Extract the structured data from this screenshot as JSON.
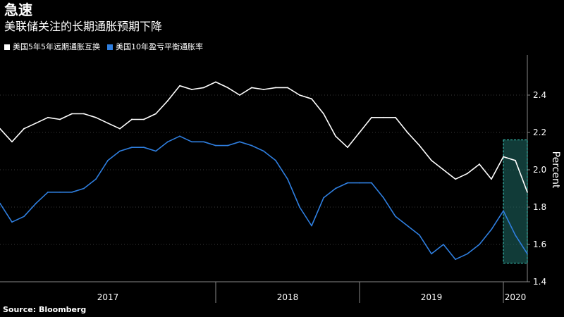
{
  "title": "急速",
  "subtitle": "美联储关注的长期通胀预期下降",
  "source": "Source: Bloomberg",
  "colors": {
    "background": "#000000",
    "series_1": "#ffffff",
    "series_2": "#2f7fe0",
    "highlight_fill": "#1f6b66",
    "highlight_border": "#3fd6c8",
    "grid": "#3a3a3a"
  },
  "chart_data": {
    "type": "line",
    "ylabel": "Percent",
    "ylim": [
      1.4,
      2.6
    ],
    "y_ticks": [
      1.4,
      1.6,
      1.8,
      2.0,
      2.2,
      2.4
    ],
    "y_tick_labels": [
      "1.4",
      "1.6",
      "1.8",
      "2.0",
      "2.2",
      "2.4"
    ],
    "y_axis_position": "right",
    "grid": true,
    "legend_position": "top-left",
    "x_start": "2016-07",
    "x_end": "2020-03",
    "x_categories": [
      "2017",
      "2018",
      "2019",
      "2020"
    ],
    "x_category_bounds": [
      [
        "2016-07",
        "2018-01"
      ],
      [
        "2018-01",
        "2019-01"
      ],
      [
        "2019-01",
        "2020-01"
      ],
      [
        "2020-01",
        "2020-03"
      ]
    ],
    "highlight": {
      "x": [
        "2020-01",
        "2020-03"
      ],
      "y": [
        1.5,
        2.16
      ]
    },
    "series": [
      {
        "name": "美国5年5年远期通胀互换",
        "x": [
          "2016-07",
          "2016-08",
          "2016-09",
          "2016-10",
          "2016-11",
          "2016-12",
          "2017-01",
          "2017-02",
          "2017-03",
          "2017-04",
          "2017-05",
          "2017-06",
          "2017-07",
          "2017-08",
          "2017-09",
          "2017-10",
          "2017-11",
          "2017-12",
          "2018-01",
          "2018-02",
          "2018-03",
          "2018-04",
          "2018-05",
          "2018-06",
          "2018-07",
          "2018-08",
          "2018-09",
          "2018-10",
          "2018-11",
          "2018-12",
          "2019-01",
          "2019-02",
          "2019-03",
          "2019-04",
          "2019-05",
          "2019-06",
          "2019-07",
          "2019-08",
          "2019-09",
          "2019-10",
          "2019-11",
          "2019-12",
          "2020-01",
          "2020-02",
          "2020-03"
        ],
        "values": [
          2.22,
          2.15,
          2.22,
          2.25,
          2.28,
          2.27,
          2.3,
          2.3,
          2.28,
          2.25,
          2.22,
          2.27,
          2.27,
          2.3,
          2.37,
          2.45,
          2.43,
          2.44,
          2.47,
          2.44,
          2.4,
          2.44,
          2.43,
          2.44,
          2.44,
          2.4,
          2.38,
          2.3,
          2.18,
          2.12,
          2.2,
          2.28,
          2.28,
          2.28,
          2.2,
          2.13,
          2.05,
          2.0,
          1.95,
          1.98,
          2.03,
          1.95,
          2.07,
          2.05,
          1.88
        ]
      },
      {
        "name": "美国10年盈亏平衡通胀率",
        "x": [
          "2016-07",
          "2016-08",
          "2016-09",
          "2016-10",
          "2016-11",
          "2016-12",
          "2017-01",
          "2017-02",
          "2017-03",
          "2017-04",
          "2017-05",
          "2017-06",
          "2017-07",
          "2017-08",
          "2017-09",
          "2017-10",
          "2017-11",
          "2017-12",
          "2018-01",
          "2018-02",
          "2018-03",
          "2018-04",
          "2018-05",
          "2018-06",
          "2018-07",
          "2018-08",
          "2018-09",
          "2018-10",
          "2018-11",
          "2018-12",
          "2019-01",
          "2019-02",
          "2019-03",
          "2019-04",
          "2019-05",
          "2019-06",
          "2019-07",
          "2019-08",
          "2019-09",
          "2019-10",
          "2019-11",
          "2019-12",
          "2020-01",
          "2020-02",
          "2020-03"
        ],
        "values": [
          1.82,
          1.72,
          1.75,
          1.82,
          1.88,
          1.88,
          1.88,
          1.9,
          1.95,
          2.05,
          2.1,
          2.12,
          2.12,
          2.1,
          2.15,
          2.18,
          2.15,
          2.15,
          2.13,
          2.13,
          2.15,
          2.13,
          2.1,
          2.05,
          1.95,
          1.8,
          1.7,
          1.85,
          1.9,
          1.93,
          1.93,
          1.93,
          1.85,
          1.75,
          1.7,
          1.65,
          1.55,
          1.6,
          1.52,
          1.55,
          1.6,
          1.68,
          1.78,
          1.65,
          1.55
        ]
      }
    ]
  }
}
